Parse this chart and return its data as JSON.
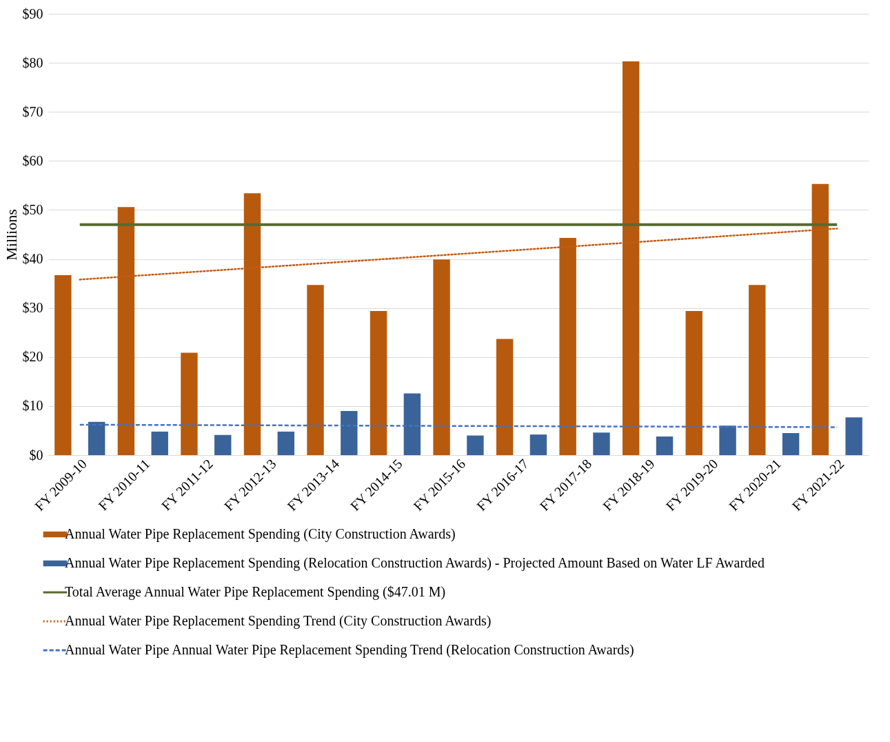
{
  "chart_data": {
    "type": "bar",
    "ylabel": "Millions",
    "categories": [
      "FY 2009-10",
      "FY 2010-11",
      "FY 2011-12",
      "FY 2012-13",
      "FY 2013-14",
      "FY 2014-15",
      "FY 2015-16",
      "FY 2016-17",
      "FY 2017-18",
      "FY 2018-19",
      "FY 2019-20",
      "FY 2020-21",
      "FY 2021-22"
    ],
    "series": [
      {
        "name": "Annual Water Pipe Replacement Spending (City Construction Awards)",
        "color": "#b85a0d",
        "values": [
          36.7,
          50.6,
          20.9,
          53.4,
          34.7,
          29.4,
          39.9,
          23.7,
          44.3,
          80.3,
          29.4,
          34.7,
          55.3
        ]
      },
      {
        "name": "Annual Water Pipe Replacement Spending (Relocation Construction Awards) - Projected Amount Based on Water LF Awarded",
        "color": "#3a6399",
        "values": [
          6.8,
          4.8,
          4.1,
          4.8,
          9.0,
          12.6,
          4.0,
          4.2,
          4.6,
          3.8,
          6.0,
          4.5,
          7.7
        ]
      },
      {
        "name": "Total Average Annual Water Pipe Replacement Spending ($47.01 M)",
        "type": "line",
        "color": "#566b2e",
        "line_style": "solid",
        "x": [
          "FY 2009-10",
          "FY 2021-22"
        ],
        "values": [
          47.01,
          47.01
        ]
      },
      {
        "name": "Annual Water Pipe Replacement Spending Trend (City Construction Awards)",
        "type": "line",
        "color": "#c55a11",
        "line_style": "dotted",
        "x": [
          "FY 2009-10",
          "FY 2021-22"
        ],
        "values": [
          35.8,
          46.2
        ]
      },
      {
        "name": "Annual Water Pipe Annual Water Pipe Replacement Spending Trend (Relocation Construction Awards)",
        "type": "line",
        "color": "#4472c4",
        "line_style": "dashed",
        "x": [
          "FY 2009-10",
          "FY 2021-22"
        ],
        "values": [
          6.2,
          5.7
        ]
      }
    ],
    "ylim": [
      0,
      90
    ],
    "yticks": [
      {
        "value": 0,
        "label": "$0"
      },
      {
        "value": 10,
        "label": "$10"
      },
      {
        "value": 20,
        "label": "$20"
      },
      {
        "value": 30,
        "label": "$30"
      },
      {
        "value": 40,
        "label": "$40"
      },
      {
        "value": 50,
        "label": "$50"
      },
      {
        "value": 60,
        "label": "$60"
      },
      {
        "value": 70,
        "label": "$70"
      },
      {
        "value": 80,
        "label": "$80"
      },
      {
        "value": 90,
        "label": "$90"
      }
    ],
    "grid": "y",
    "legend": "bottom"
  }
}
